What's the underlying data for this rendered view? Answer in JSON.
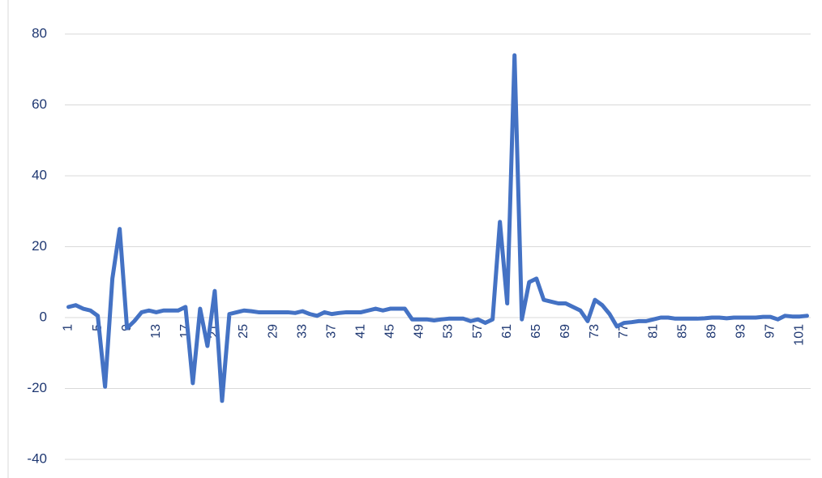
{
  "chart_data": {
    "type": "line",
    "categories": [
      "1",
      null,
      null,
      null,
      "5",
      null,
      null,
      null,
      "9",
      null,
      null,
      null,
      "13",
      null,
      null,
      null,
      "17",
      null,
      null,
      null,
      "21",
      null,
      null,
      null,
      "25",
      null,
      null,
      null,
      "29",
      null,
      null,
      null,
      "33",
      null,
      null,
      null,
      "37",
      null,
      null,
      null,
      "41",
      null,
      null,
      null,
      "45",
      null,
      null,
      null,
      "49",
      null,
      null,
      null,
      "53",
      null,
      null,
      null,
      "57",
      null,
      null,
      null,
      "61",
      null,
      null,
      null,
      "65",
      null,
      null,
      null,
      "69",
      null,
      null,
      null,
      "73",
      null,
      null,
      null,
      "77",
      null,
      null,
      null,
      "81",
      null,
      null,
      null,
      "85",
      null,
      null,
      null,
      "89",
      null,
      null,
      null,
      "93",
      null,
      null,
      null,
      "97",
      null,
      null,
      null,
      "101",
      null
    ],
    "values": [
      3,
      3.5,
      2.5,
      2,
      0.5,
      -19.5,
      11,
      25,
      -3,
      -1,
      1.5,
      2,
      1.5,
      2,
      2,
      2,
      3,
      -18.5,
      2.5,
      -8,
      7.5,
      -23.5,
      1,
      1.5,
      2,
      1.8,
      1.5,
      1.5,
      1.5,
      1.5,
      1.5,
      1.3,
      1.8,
      1,
      0.5,
      1.5,
      1,
      1.3,
      1.5,
      1.5,
      1.5,
      2,
      2.5,
      2,
      2.5,
      2.5,
      2.5,
      -0.5,
      -0.5,
      -0.5,
      -0.8,
      -0.5,
      -0.3,
      -0.3,
      -0.3,
      -1,
      -0.5,
      -1.5,
      -0.5,
      27,
      4,
      74,
      -0.5,
      10,
      11,
      5,
      4.5,
      4,
      4,
      3,
      2,
      -1,
      5,
      3.5,
      1,
      -2.5,
      -1.5,
      -1.3,
      -1,
      -1,
      -0.5,
      0,
      0,
      -0.3,
      -0.3,
      -0.3,
      -0.3,
      -0.2,
      0,
      0,
      -0.2,
      0,
      0,
      0,
      0,
      0.2,
      0.2,
      -0.5,
      0.5,
      0.3,
      0.3,
      0.5
    ],
    "color": "#4472c4",
    "ylim": [
      -40,
      80
    ],
    "yticks": [
      -40,
      -20,
      0,
      20,
      40,
      60,
      80
    ],
    "grid": true
  }
}
